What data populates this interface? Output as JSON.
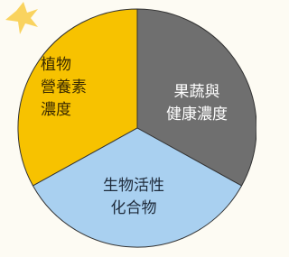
{
  "slices": [
    {
      "label_lines": [
        "植物",
        "營養素",
        "濃度"
      ]
    },
    {
      "label_lines": [
        "果蔬與",
        "健康濃度"
      ]
    },
    {
      "label_lines": [
        "生物活性",
        "化合物"
      ]
    }
  ]
}
